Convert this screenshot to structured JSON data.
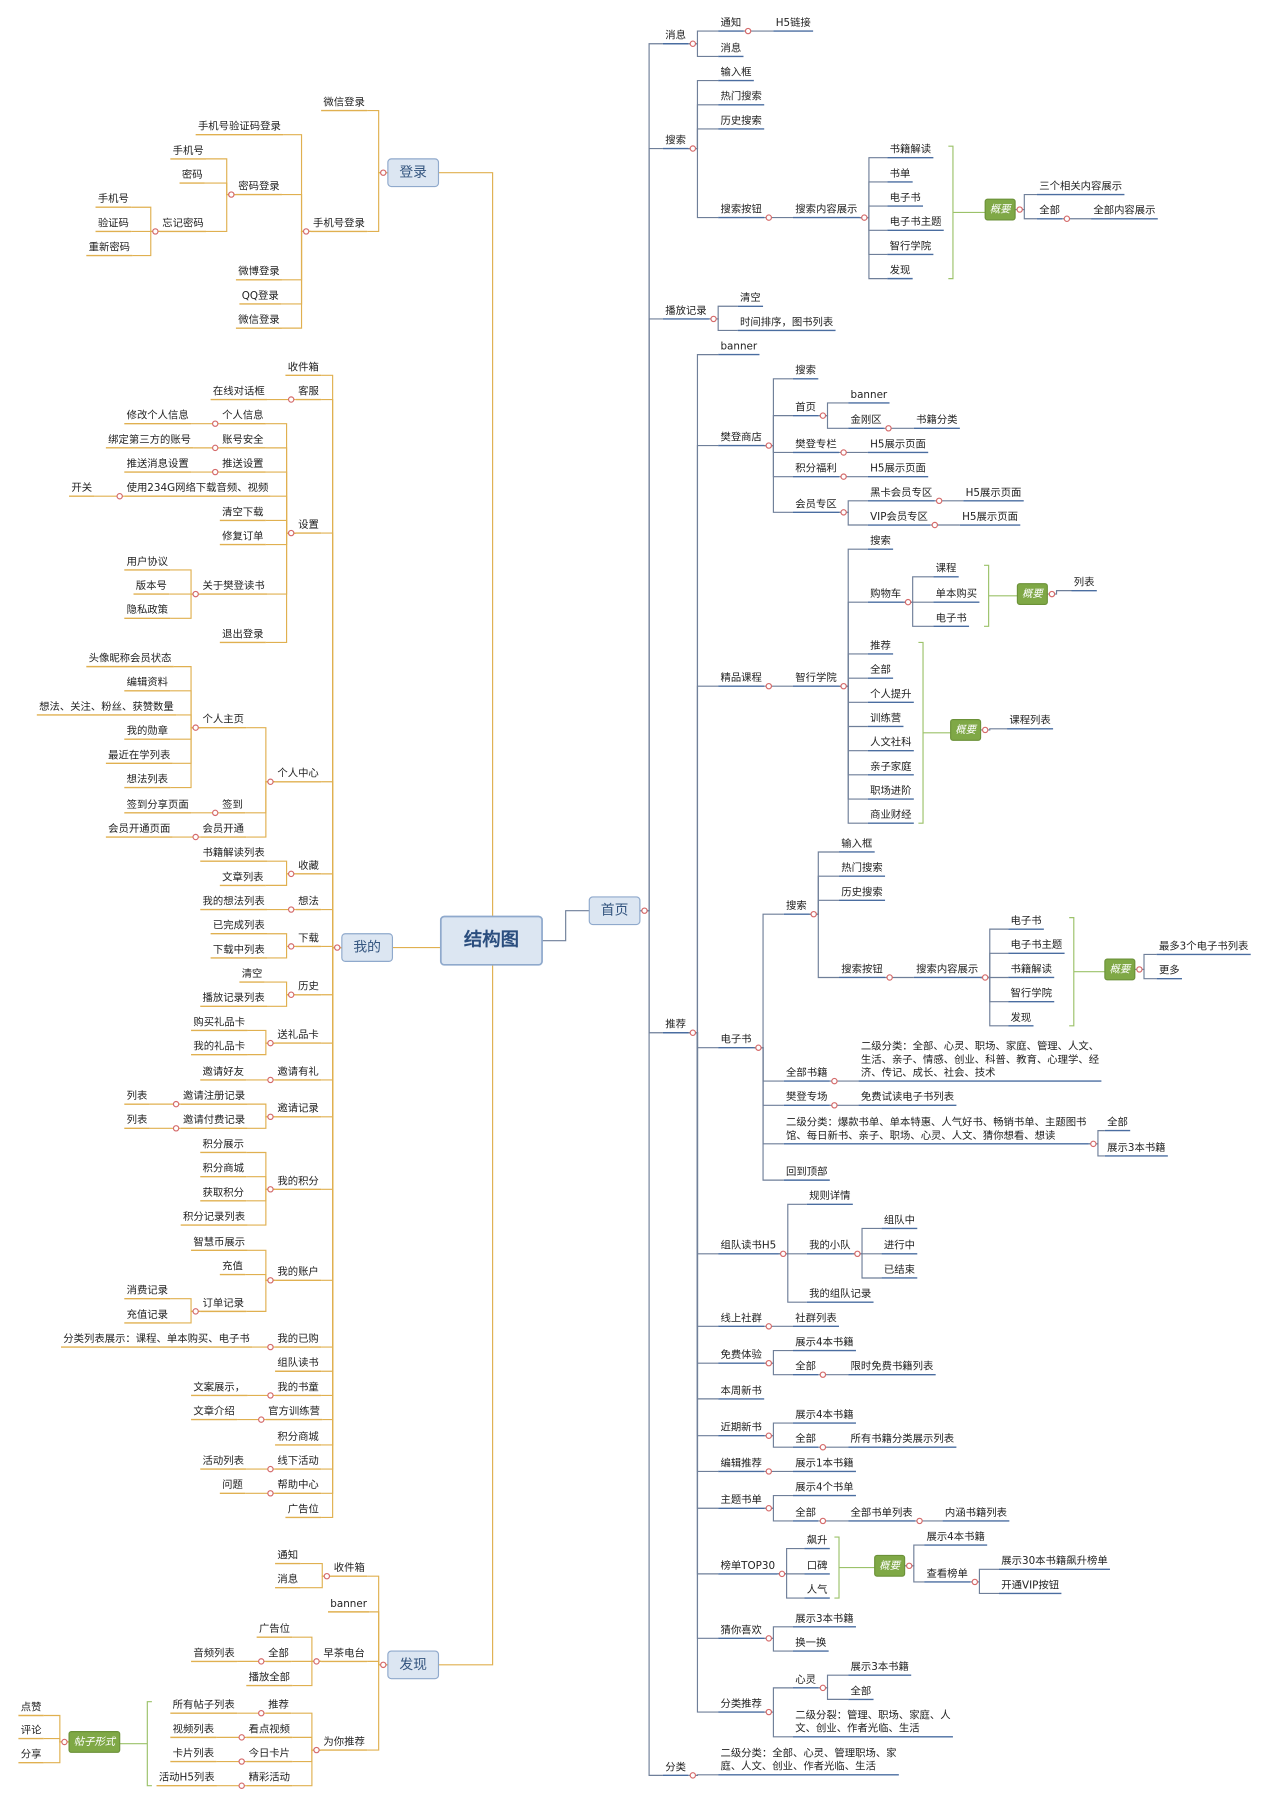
{
  "nodes": [
    "结构图",
    "首页",
    "登录",
    "我的",
    "发现",
    "消息",
    "搜索",
    "播放记录",
    "推荐",
    "分类",
    "通知",
    "H5链接",
    "消息",
    "输入框",
    "热门搜索",
    "历史搜索",
    "搜索按钮",
    "搜索内容展示",
    "书籍解读",
    "书单",
    "电子书",
    "电子书主题",
    "智行学院",
    "发现",
    "概要",
    "三个相关内容展示",
    "全部",
    "全部内容展示",
    "清空",
    "时间排序，图书列表",
    "banner",
    "樊登商店",
    "精品课程",
    "电子书",
    "组队读书H5",
    "线上社群",
    "免费体验",
    "本周新书",
    "近期新书",
    "编辑推荐",
    "主题书单",
    "榜单TOP30",
    "猜你喜欢",
    "分类推荐",
    "搜索",
    "首页",
    "banner",
    "金刚区",
    "书籍分类",
    "樊登专栏",
    "H5展示页面",
    "积分福利",
    "H5展示页面",
    "会员专区",
    "黑卡会员专区",
    "H5展示页面",
    "VIP会员专区",
    "H5展示页面",
    "智行学院",
    "搜索",
    "购物车",
    "课程",
    "单本购买",
    "电子书",
    "概要",
    "列表",
    "推荐",
    "全部",
    "个人提升",
    "训练营",
    "人文社科",
    "亲子家庭",
    "职场进阶",
    "商业财经",
    "概要",
    "课程列表",
    "搜索",
    "输入框",
    "热门搜索",
    "历史搜索",
    "搜索按钮",
    "搜索内容展示",
    "电子书",
    "电子书主题",
    "书籍解读",
    "智行学院",
    "发现",
    "概要",
    "最多3个电子书列表",
    "更多",
    "全部书籍",
    "二级分类：全部、心灵、职场、家庭、管理、人文、\n生活、亲子、情感、创业、科普、教育、心理学、经\n济、传记、成长、社会、技术",
    "樊登专场",
    "免费试读电子书列表",
    "二级分类：爆款书单、单本特惠、人气好书、畅销书单、主题图书\n馆、每日新书、亲子、职场、心灵、人文、猜你想看、想读",
    "全部",
    "展示3本书籍",
    "回到顶部",
    "规则详情",
    "我的小队",
    "组队中",
    "进行中",
    "已结束",
    "我的组队记录",
    "社群列表",
    "展示4本书籍",
    "全部",
    "限时免费书籍列表",
    "展示4本书籍",
    "全部",
    "所有书籍分类展示列表",
    "展示1本书籍",
    "展示4个书单",
    "全部",
    "全部书单列表",
    "内涵书籍列表",
    "飙升",
    "口碑",
    "人气",
    "概要",
    "展示4本书籍",
    "查看榜单",
    "展示30本书籍飙升榜单",
    "开通VIP按钮",
    "展示3本书籍",
    "换一换",
    "心灵",
    "展示3本书籍",
    "全部",
    "二级分裂：管理、职场、家庭、人\n文、创业、作者光临、生活",
    "二级分类：全部、心灵、管理职场、家\n庭、人文、创业、作者光临、生活",
    "微信登录",
    "手机号登录",
    "手机号验证码登录",
    "密码登录",
    "手机号",
    "密码",
    "忘记密码",
    "手机号",
    "验证码",
    "重新密码",
    "微博登录",
    "QQ登录",
    "微信登录",
    "收件箱",
    "客服",
    "在线对话框",
    "设置",
    "个人信息",
    "修改个人信息",
    "账号安全",
    "绑定第三方的账号",
    "推送设置",
    "推送消息设置",
    "使用234G网络下载音频、视频",
    "开关",
    "清空下载",
    "修复订单",
    "关于樊登读书",
    "用户协议",
    "版本号",
    "隐私政策",
    "退出登录",
    "个人中心",
    "个人主页",
    "头像昵称会员状态",
    "编辑资料",
    "想法、关注、粉丝、获赞数量",
    "我的勋章",
    "最近在学列表",
    "想法列表",
    "签到",
    "签到分享页面",
    "会员开通",
    "会员开通页面",
    "收藏",
    "书籍解读列表",
    "文章列表",
    "想法",
    "我的想法列表",
    "下载",
    "已完成列表",
    "下载中列表",
    "历史",
    "清空",
    "播放记录列表",
    "送礼品卡",
    "购买礼品卡",
    "我的礼品卡",
    "邀请有礼",
    "邀请好友",
    "邀请记录",
    "邀请注册记录",
    "列表",
    "邀请付费记录",
    "列表",
    "我的积分",
    "积分展示",
    "积分商城",
    "获取积分",
    "积分记录列表",
    "我的账户",
    "智慧币展示",
    "充值",
    "订单记录",
    "消费记录",
    "充值记录",
    "我的已购",
    "分类列表展示：课程、单本购买、电子书",
    "组队读书",
    "我的书童",
    "文案展示，",
    "官方训练营",
    "文章介绍",
    "积分商城",
    "线下活动",
    "活动列表",
    "帮助中心",
    "问题",
    "广告位",
    "收件箱",
    "通知",
    "消息",
    "banner",
    "早茶电台",
    "广告位",
    "全部",
    "音频列表",
    "播放全部",
    "为你推荐",
    "推荐",
    "所有帖子列表",
    "看点视频",
    "视频列表",
    "今日卡片",
    "卡片列表",
    "精彩活动",
    "活动H5列表",
    "帖子形式",
    "点赞",
    "评论",
    "分享"
  ]
}
